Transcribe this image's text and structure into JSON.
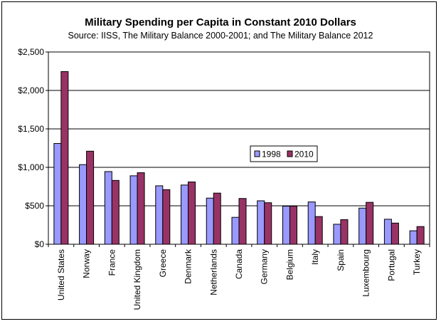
{
  "chart_data": {
    "type": "bar",
    "title": "Military Spending per Capita in Constant 2010 Dollars",
    "subtitle": "Source: IISS, The Military Balance 2000-2001; and The Military Balance 2012",
    "categories": [
      "United States",
      "Norway",
      "France",
      "United Kingdom",
      "Greece",
      "Denmark",
      "Netherlands",
      "Canada",
      "Germany",
      "Belgium",
      "Italy",
      "Spain",
      "Luxembourg",
      "Portugal",
      "Turkey"
    ],
    "series": [
      {
        "name": "1998",
        "color": "#9999ff",
        "values": [
          1310,
          1035,
          945,
          890,
          760,
          770,
          600,
          350,
          565,
          495,
          550,
          260,
          470,
          325,
          175
        ]
      },
      {
        "name": "2010",
        "color": "#993366",
        "values": [
          2245,
          1210,
          830,
          930,
          710,
          810,
          665,
          595,
          540,
          495,
          360,
          320,
          545,
          275,
          230
        ]
      }
    ],
    "ylim": [
      0,
      2500
    ],
    "yticks": [
      0,
      500,
      1000,
      1500,
      2000,
      2500
    ],
    "ytick_labels": [
      "$0",
      "$500",
      "$1,000",
      "$1,500",
      "$2,000",
      "$2,500"
    ],
    "grid": true,
    "plot_background": "#ffffff",
    "legend_position": "inside-center-right"
  }
}
